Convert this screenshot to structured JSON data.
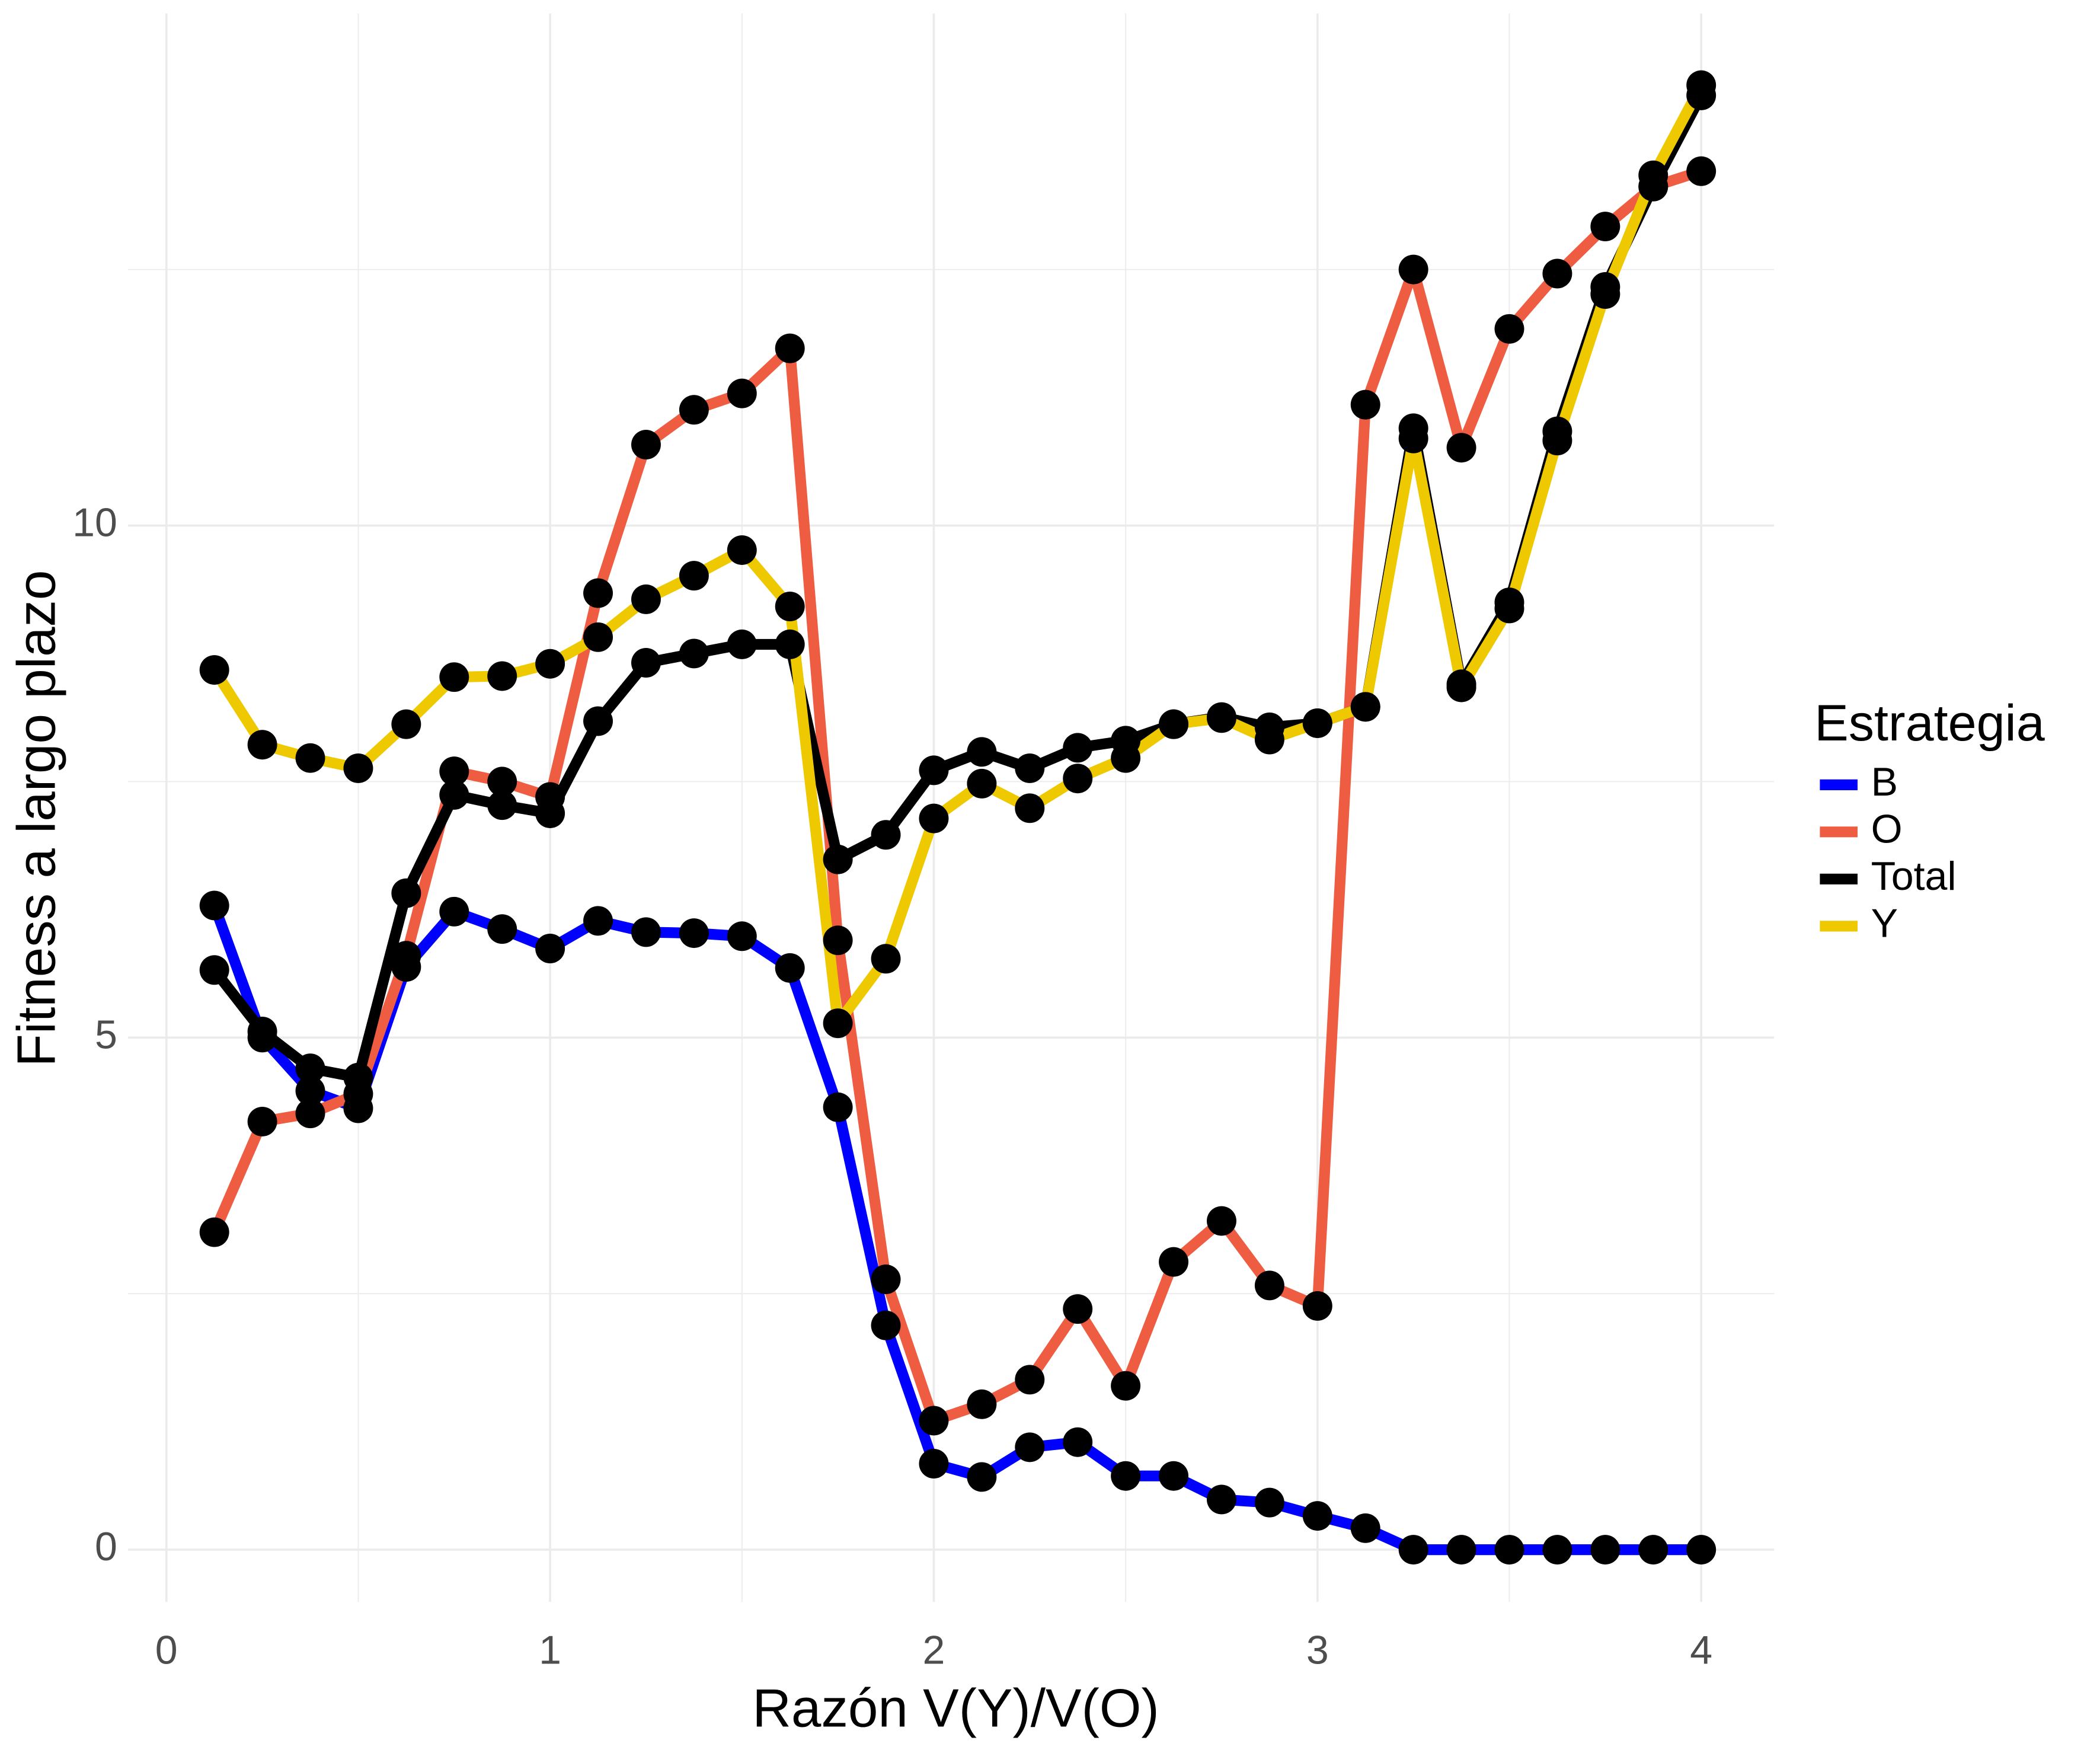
{
  "chart_data": {
    "type": "line",
    "x_label": "Razón V(Y)/V(O)",
    "y_label": "Fitness a largo plazo",
    "legend_title": "Estrategia",
    "legend_position": "right",
    "grid": true,
    "x": [
      0.125,
      0.25,
      0.375,
      0.5,
      0.625,
      0.75,
      0.875,
      1,
      1.125,
      1.25,
      1.375,
      1.5,
      1.625,
      1.75,
      1.875,
      2,
      2.125,
      2.25,
      2.375,
      2.5,
      2.625,
      2.75,
      2.875,
      3,
      3.125,
      3.25,
      3.375,
      3.5,
      3.625,
      3.75,
      3.875,
      4
    ],
    "xlim": [
      -0.1,
      4.19
    ],
    "xticks": [
      0,
      1,
      2,
      3,
      4
    ],
    "xminor": [
      0.5,
      1.5,
      2.5,
      3.5
    ],
    "ylim": [
      -0.51,
      15.0
    ],
    "yticks": [
      0,
      5,
      10
    ],
    "yminor": [
      2.5,
      7.5,
      12.5
    ],
    "point_color": "#000000",
    "series": [
      {
        "name": "B",
        "color": "#0000ff",
        "values": [
          6.29,
          5.0,
          4.48,
          4.31,
          5.69,
          6.23,
          6.06,
          5.87,
          6.14,
          6.03,
          6.02,
          5.99,
          5.68,
          4.32,
          2.19,
          0.84,
          0.71,
          1.0,
          1.05,
          0.72,
          0.72,
          0.49,
          0.46,
          0.33,
          0.21,
          0,
          0,
          0,
          0,
          0,
          0,
          0
        ]
      },
      {
        "name": "O",
        "color": "#ee5c42",
        "values": [
          3.1,
          4.18,
          4.26,
          4.45,
          5.8,
          7.6,
          7.5,
          7.35,
          9.34,
          10.79,
          11.13,
          11.29,
          11.73,
          5.95,
          2.64,
          1.26,
          1.42,
          1.66,
          2.35,
          1.6,
          2.81,
          3.21,
          2.58,
          2.38,
          11.18,
          12.5,
          10.76,
          11.92,
          12.46,
          12.92,
          13.31,
          13.46
        ]
      },
      {
        "name": "Total",
        "color": "#000000",
        "values": [
          5.66,
          5.06,
          4.7,
          4.61,
          6.41,
          7.37,
          7.27,
          7.19,
          8.09,
          8.66,
          8.75,
          8.84,
          8.84,
          6.74,
          6.98,
          7.61,
          7.79,
          7.63,
          7.83,
          7.9,
          8.06,
          8.13,
          8.03,
          8.07,
          8.23,
          10.95,
          8.45,
          9.25,
          10.92,
          12.33,
          13.31,
          14.2
        ]
      },
      {
        "name": "Y",
        "color": "#eec900",
        "values": [
          8.59,
          7.86,
          7.73,
          7.63,
          8.06,
          8.52,
          8.53,
          8.65,
          8.91,
          9.28,
          9.51,
          9.76,
          9.21,
          5.14,
          5.77,
          7.14,
          7.48,
          7.24,
          7.53,
          7.73,
          8.06,
          8.12,
          7.91,
          8.07,
          8.23,
          10.85,
          8.42,
          9.19,
          10.83,
          12.26,
          13.42,
          14.3
        ]
      }
    ]
  }
}
